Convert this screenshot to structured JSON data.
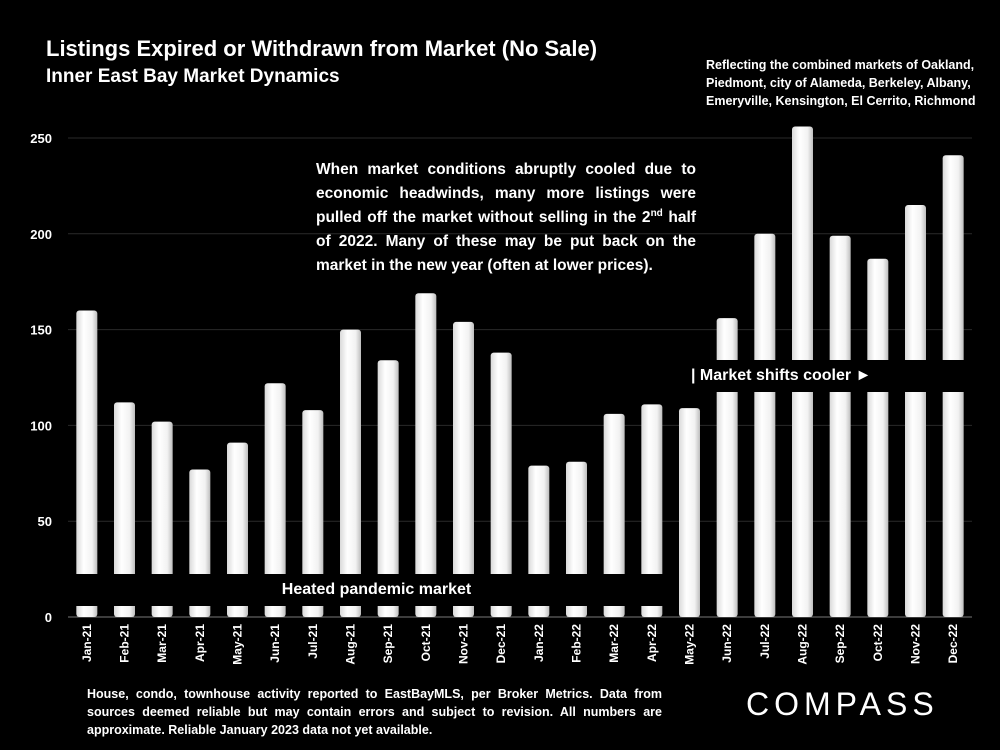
{
  "header": {
    "title": "Listings Expired or Withdrawn from Market (No Sale)",
    "subtitle": "Inner East Bay Market Dynamics",
    "note": "Reflecting the combined markets of Oakland, Piedmont, city of Alameda, Berkeley, Albany, Emeryville, Kensington, El Cerrito, Richmond"
  },
  "callout": {
    "text_before": "When market conditions abruptly cooled due to economic headwinds, many more listings were pulled off the market without selling in the 2",
    "superscript": "nd",
    "text_after": " half of 2022. Many of these may be put back on the market in the new year (often at lower prices)."
  },
  "annotations": {
    "heated": "Heated pandemic market",
    "cooler": "| Market shifts cooler ►"
  },
  "footer": {
    "text": "House, condo, townhouse activity reported to EastBayMLS, per Broker Metrics. Data from sources deemed reliable but may contain errors and subject to revision. All numbers are approximate. Reliable January 2023 data not yet available."
  },
  "brand": {
    "logo": "COMPASS"
  },
  "colors": {
    "background": "#000000",
    "bar": "#ffffff",
    "gridline": "#2a2a2a",
    "text": "#ffffff"
  },
  "chart_data": {
    "type": "bar",
    "title": "Listings Expired or Withdrawn from Market (No Sale)",
    "xlabel": "",
    "ylabel": "",
    "categories": [
      "Jan-21",
      "Feb-21",
      "Mar-21",
      "Apr-21",
      "May-21",
      "Jun-21",
      "Jul-21",
      "Aug-21",
      "Sep-21",
      "Oct-21",
      "Nov-21",
      "Dec-21",
      "Jan-22",
      "Feb-22",
      "Mar-22",
      "Apr-22",
      "May-22",
      "Jun-22",
      "Jul-22",
      "Aug-22",
      "Sep-22",
      "Oct-22",
      "Nov-22",
      "Dec-22"
    ],
    "values": [
      160,
      112,
      102,
      77,
      91,
      122,
      108,
      150,
      134,
      169,
      154,
      138,
      79,
      81,
      106,
      111,
      109,
      156,
      200,
      256,
      199,
      187,
      215,
      241
    ],
    "ylim": [
      0,
      250
    ],
    "yticks": [
      0,
      50,
      100,
      150,
      200,
      250
    ],
    "grid": true,
    "legend": "none"
  }
}
